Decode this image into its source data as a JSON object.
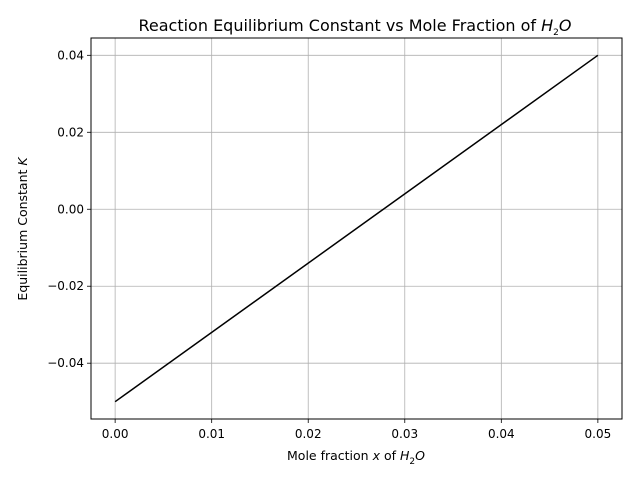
{
  "chart_data": {
    "type": "line",
    "title_prefix": "Reaction Equilibrium Constant vs Mole Fraction of ",
    "xlabel_prefix": "Mole fraction ",
    "xlabel_var": "x",
    "xlabel_mid": " of ",
    "species_H": "H",
    "species_sub": "2",
    "species_O": "O",
    "ylabel_prefix": "Equilibrium Constant ",
    "ylabel_var": "K",
    "x_ticks": [
      0.0,
      0.01,
      0.02,
      0.03,
      0.04,
      0.05
    ],
    "x_tick_labels": [
      "0.00",
      "0.01",
      "0.02",
      "0.03",
      "0.04",
      "0.05"
    ],
    "y_ticks": [
      -0.04,
      -0.02,
      0.0,
      0.02,
      0.04
    ],
    "y_tick_labels": [
      "−0.04",
      "−0.02",
      "0.00",
      "0.02",
      "0.04"
    ],
    "xlim": [
      -0.0025,
      0.0525
    ],
    "ylim": [
      -0.0545,
      0.0445
    ],
    "grid": true,
    "series": [
      {
        "x": [
          0.0,
          0.05
        ],
        "y": [
          -0.05,
          0.04
        ],
        "color": "#000000"
      }
    ]
  }
}
